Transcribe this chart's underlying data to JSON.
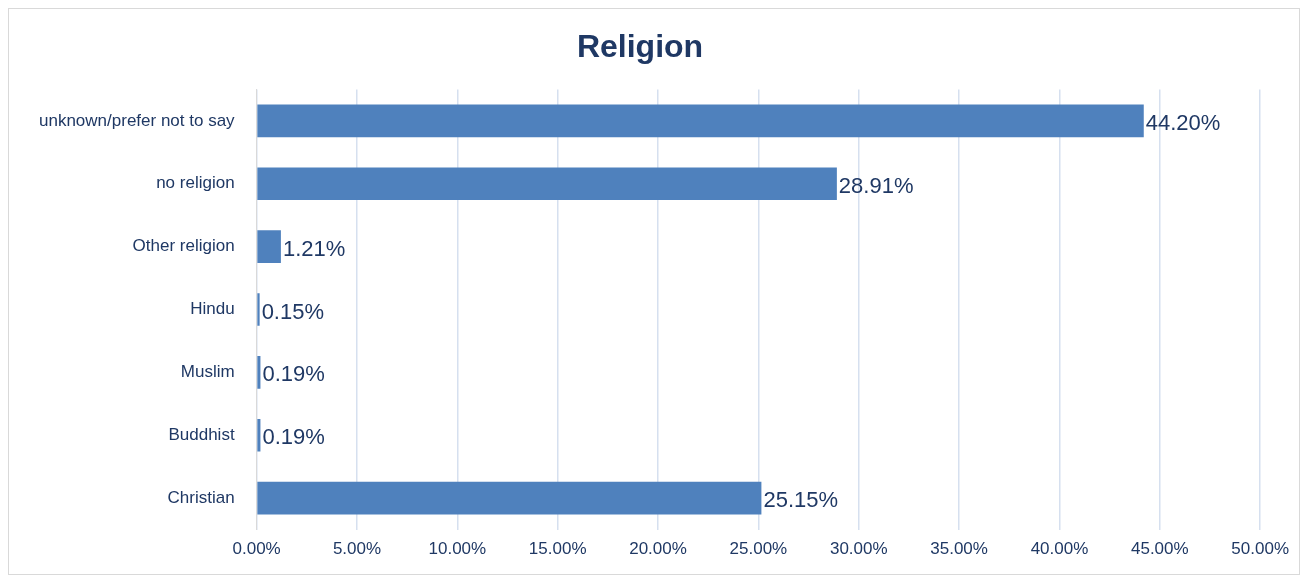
{
  "chart_data": {
    "type": "bar",
    "title": "Religion",
    "orientation": "horizontal",
    "categories": [
      "unknown/prefer not to say",
      "no religion",
      "Other religion",
      "Hindu",
      "Muslim",
      "Buddhist",
      "Christian"
    ],
    "values": [
      44.2,
      28.91,
      1.21,
      0.15,
      0.19,
      0.19,
      25.15
    ],
    "value_labels": [
      "44.20%",
      "28.91%",
      "1.21%",
      "0.15%",
      "0.19%",
      "0.19%",
      "25.15%"
    ],
    "color": "#4f81bd",
    "xlim": [
      0,
      50
    ],
    "xticks": [
      {
        "value": 0,
        "label": "0.00%"
      },
      {
        "value": 5,
        "label": "5.00%"
      },
      {
        "value": 10,
        "label": "10.00%"
      },
      {
        "value": 15,
        "label": "15.00%"
      },
      {
        "value": 20,
        "label": "20.00%"
      },
      {
        "value": 25,
        "label": "25.00%"
      },
      {
        "value": 30,
        "label": "30.00%"
      },
      {
        "value": 35,
        "label": "35.00%"
      },
      {
        "value": 40,
        "label": "40.00%"
      },
      {
        "value": 45,
        "label": "45.00%"
      },
      {
        "value": 50,
        "label": "50.00%"
      }
    ],
    "grid": "x"
  }
}
